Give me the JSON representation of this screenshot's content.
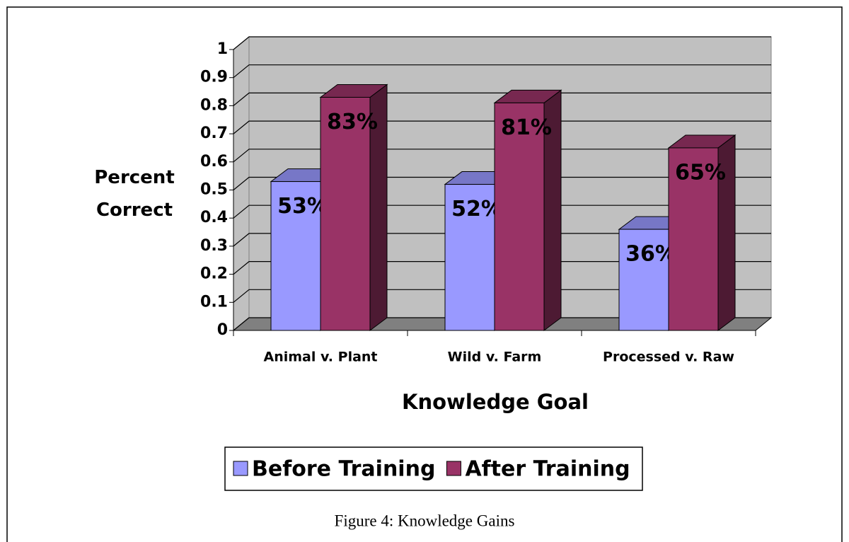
{
  "chart_data": {
    "type": "bar3d",
    "categories": [
      "Animal v. Plant",
      "Wild v. Farm",
      "Processed v. Raw"
    ],
    "series": [
      {
        "name": "Before Training",
        "color": "#9999ff",
        "values": [
          0.53,
          0.52,
          0.36
        ],
        "value_labels": [
          "53%",
          "52%",
          "36%"
        ]
      },
      {
        "name": "After Training",
        "color": "#993366",
        "values": [
          0.83,
          0.81,
          0.65
        ],
        "value_labels": [
          "83%",
          "81%",
          "65%"
        ]
      }
    ],
    "ylim": [
      0,
      1
    ],
    "yticks": [
      0,
      0.1,
      0.2,
      0.3,
      0.4,
      0.5,
      0.6,
      0.7,
      0.8,
      0.9,
      1
    ],
    "grid": true,
    "legend": "bottom",
    "y_label": "Percent Correct",
    "x_label": "Knowledge Goal",
    "caption": "Figure 4:  Knowledge Gains"
  }
}
